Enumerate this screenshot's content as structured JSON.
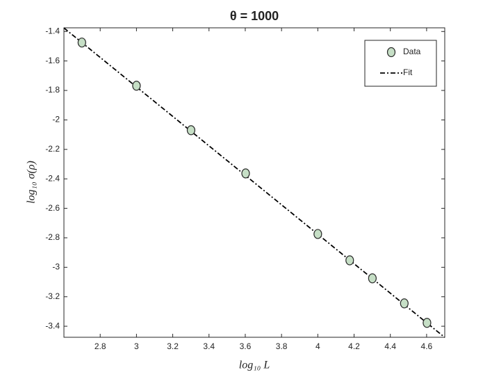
{
  "chart_data": {
    "type": "scatter",
    "title": "θ = 1000",
    "xlabel": "log₁₀ L",
    "ylabel": "log₁₀ σ(ρ)",
    "series": [
      {
        "name": "Data",
        "mode": "markers",
        "color": "#c6dfc6",
        "x": [
          2.699,
          3.0,
          3.301,
          3.602,
          4.0,
          4.176,
          4.301,
          4.477,
          4.602
        ],
        "values": [
          -1.475,
          -1.768,
          -2.07,
          -2.363,
          -2.774,
          -2.953,
          -3.075,
          -3.245,
          -3.377
        ]
      },
      {
        "name": "Fit",
        "mode": "line",
        "dash": "dashdot",
        "color": "#000000",
        "x": [
          2.6,
          4.7
        ],
        "values": [
          -1.376,
          -3.476
        ]
      }
    ],
    "xlim": [
      2.6,
      4.7
    ],
    "ylim": [
      -3.475,
      -1.375
    ],
    "xticks": [
      2.8,
      3,
      3.2,
      3.4,
      3.6,
      3.8,
      4,
      4.2,
      4.4,
      4.6
    ],
    "yticks": [
      -3.4,
      -3.2,
      -3,
      -2.8,
      -2.6,
      -2.4,
      -2.2,
      -2,
      -1.8,
      -1.6,
      -1.4
    ],
    "grid": false,
    "legend": "northeast"
  }
}
